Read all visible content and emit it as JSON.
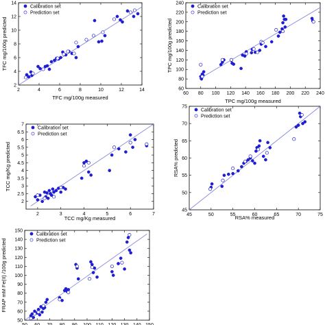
{
  "chart_data": [
    {
      "type": "scatter",
      "xlabel": "TFC mg/100g measured",
      "ylabel": "TFC mg/100g predicted",
      "xlim": [
        2,
        14
      ],
      "ylim": [
        2,
        14
      ],
      "xticks": [
        "2",
        "4",
        "6",
        "8",
        "10",
        "12",
        "14"
      ],
      "yticks": [
        "2",
        "4",
        "6",
        "8",
        "10",
        "12",
        "14"
      ],
      "legend": [
        "Calibration set",
        "Prediction set"
      ],
      "legend_position": "top-left",
      "fit_line": [
        [
          2,
          2
        ],
        [
          14,
          13.4
        ]
      ],
      "series": [
        {
          "name": "Calibration set",
          "marker": "filled",
          "points": [
            [
              2.8,
              3.5
            ],
            [
              3.0,
              3.2
            ],
            [
              3.2,
              3.9
            ],
            [
              3.3,
              3.4
            ],
            [
              3.9,
              4.7
            ],
            [
              4.1,
              4.4
            ],
            [
              4.6,
              4.7
            ],
            [
              4.8,
              4.8
            ],
            [
              5.0,
              4.3
            ],
            [
              5.2,
              5.4
            ],
            [
              5.5,
              5.6
            ],
            [
              5.7,
              5.9
            ],
            [
              5.9,
              5.8
            ],
            [
              6.1,
              6.0
            ],
            [
              6.3,
              6.8
            ],
            [
              6.6,
              6.4
            ],
            [
              6.9,
              6.9
            ],
            [
              7.2,
              6.6
            ],
            [
              7.6,
              6.0
            ],
            [
              7.8,
              7.6
            ],
            [
              9.4,
              11.4
            ],
            [
              9.8,
              8.3
            ],
            [
              10.1,
              8.4
            ],
            [
              10.4,
              9.2
            ],
            [
              11.6,
              12.0
            ],
            [
              11.9,
              11.5
            ],
            [
              12.1,
              11.2
            ],
            [
              12.6,
              12.8
            ],
            [
              13.2,
              12.0
            ],
            [
              13.6,
              12.4
            ]
          ]
        },
        {
          "name": "Prediction set",
          "marker": "open",
          "points": [
            [
              2.7,
              3.1
            ],
            [
              3.4,
              3.7
            ],
            [
              4.4,
              4.3
            ],
            [
              5.8,
              5.9
            ],
            [
              6.4,
              6.5
            ],
            [
              6.8,
              6.9
            ],
            [
              7.4,
              6.6
            ],
            [
              7.6,
              8.2
            ],
            [
              8.6,
              8.6
            ],
            [
              9.3,
              9.2
            ],
            [
              10.2,
              9.7
            ],
            [
              11.3,
              11.6
            ],
            [
              12.9,
              12.6
            ],
            [
              13.3,
              12.9
            ]
          ]
        }
      ]
    },
    {
      "type": "scatter",
      "xlabel": "TPC mg/100g measured",
      "ylabel": "TPC mg/100g predicted",
      "xlim": [
        60,
        240
      ],
      "ylim": [
        60,
        240
      ],
      "xticks": [
        "60",
        "80",
        "100",
        "120",
        "140",
        "160",
        "180",
        "200",
        "220",
        "240"
      ],
      "yticks": [
        "60",
        "80",
        "100",
        "120",
        "140",
        "160",
        "180",
        "200",
        "220",
        "240"
      ],
      "legend": [
        "Calibration set",
        "Prediction set"
      ],
      "legend_position": "top-left",
      "fit_line": [
        [
          78,
          80
        ],
        [
          240,
          230
        ]
      ],
      "series": [
        {
          "name": "Calibration set",
          "marker": "filled",
          "points": [
            [
              80,
              85
            ],
            [
              81,
              80
            ],
            [
              82,
              90
            ],
            [
              83,
              88
            ],
            [
              84,
              95
            ],
            [
              107,
              110
            ],
            [
              109,
              115
            ],
            [
              111,
              120
            ],
            [
              121,
              119
            ],
            [
              122,
              113
            ],
            [
              124,
              111
            ],
            [
              134,
              102
            ],
            [
              136,
              130
            ],
            [
              139,
              128
            ],
            [
              141,
              137
            ],
            [
              148,
              135
            ],
            [
              149,
              142
            ],
            [
              153,
              136
            ],
            [
              159,
              140
            ],
            [
              161,
              153
            ],
            [
              167,
              148
            ],
            [
              175,
              158
            ],
            [
              184,
              170
            ],
            [
              186,
              178
            ],
            [
              189,
              185
            ],
            [
              190,
              198
            ],
            [
              191,
              212
            ],
            [
              192,
              205
            ],
            [
              193,
              189
            ],
            [
              194,
              205
            ],
            [
              229,
              207
            ],
            [
              230,
              202
            ]
          ]
        },
        {
          "name": "Prediction set",
          "marker": "open",
          "points": [
            [
              80,
              110
            ],
            [
              82,
              85
            ],
            [
              109,
              120
            ],
            [
              121,
              120
            ],
            [
              141,
              133
            ],
            [
              151,
              143
            ],
            [
              156,
              136
            ],
            [
              161,
              158
            ],
            [
              163,
              156
            ],
            [
              181,
              183
            ],
            [
              190,
              180
            ],
            [
              231,
              200
            ]
          ]
        }
      ]
    },
    {
      "type": "scatter",
      "xlabel": "TCC mg/Kg measured",
      "ylabel": "TCC mg/Kg predicted",
      "xlim": [
        1.5,
        7
      ],
      "ylim": [
        1.5,
        7
      ],
      "xticks": [
        "2",
        "3",
        "4",
        "5",
        "6",
        "7"
      ],
      "yticks": [
        "2",
        "2.5",
        "3",
        "3.5",
        "4",
        "4.5",
        "5",
        "5.5",
        "6",
        "6.5",
        "7"
      ],
      "legend": [
        "Calibration set",
        "Prediction set"
      ],
      "legend_position": "top-left",
      "fit_line": [
        [
          1.7,
          1.7
        ],
        [
          7,
          7
        ]
      ],
      "series": [
        {
          "name": "Calibration set",
          "marker": "filled",
          "points": [
            [
              1.9,
              2.3
            ],
            [
              2.0,
              2.1
            ],
            [
              2.1,
              2.4
            ],
            [
              2.2,
              2.0
            ],
            [
              2.3,
              2.6
            ],
            [
              2.35,
              2.3
            ],
            [
              2.4,
              2.55
            ],
            [
              2.45,
              2.2
            ],
            [
              2.5,
              2.7
            ],
            [
              2.55,
              2.5
            ],
            [
              2.6,
              2.4
            ],
            [
              2.65,
              2.8
            ],
            [
              2.7,
              2.6
            ],
            [
              2.8,
              2.7
            ],
            [
              2.9,
              2.85
            ],
            [
              3.0,
              2.6
            ],
            [
              3.1,
              2.9
            ],
            [
              3.2,
              2.8
            ],
            [
              3.9,
              3.5
            ],
            [
              4.0,
              4.5
            ],
            [
              4.1,
              4.6
            ],
            [
              4.2,
              3.9
            ],
            [
              4.3,
              3.7
            ],
            [
              5.1,
              4.0
            ],
            [
              5.2,
              5.0
            ],
            [
              5.5,
              5.4
            ],
            [
              5.8,
              5.2
            ],
            [
              6.0,
              6.3
            ],
            [
              6.1,
              5.5
            ],
            [
              6.2,
              6.0
            ],
            [
              6.7,
              5.6
            ]
          ]
        },
        {
          "name": "Prediction set",
          "marker": "open",
          "points": [
            [
              2.0,
              2.4
            ],
            [
              2.3,
              2.2
            ],
            [
              2.7,
              2.3
            ],
            [
              3.0,
              2.9
            ],
            [
              4.0,
              4.3
            ],
            [
              4.2,
              4.5
            ],
            [
              5.3,
              5.5
            ],
            [
              6.0,
              5.8
            ],
            [
              6.7,
              5.7
            ]
          ]
        }
      ]
    },
    {
      "type": "scatter",
      "xlabel": "RSA% measured",
      "ylabel": "RSA% predicted",
      "xlim": [
        45,
        75
      ],
      "ylim": [
        45,
        75
      ],
      "xticks": [
        "45",
        "50",
        "55",
        "60",
        "65",
        "70",
        "75"
      ],
      "yticks": [
        "45",
        "50",
        "55",
        "60",
        "65",
        "70",
        "75"
      ],
      "legend": [
        "Calibration set",
        "Prediction set"
      ],
      "legend_position": "top-left",
      "fit_line": [
        [
          45,
          45
        ],
        [
          75,
          75
        ]
      ],
      "series": [
        {
          "name": "Calibration set",
          "marker": "filled",
          "points": [
            [
              50.0,
              51.5
            ],
            [
              50.2,
              52.5
            ],
            [
              52.5,
              51.8
            ],
            [
              53.0,
              55.0
            ],
            [
              54.0,
              55.3
            ],
            [
              55.0,
              55.5
            ],
            [
              56.2,
              56.3
            ],
            [
              57.0,
              57.5
            ],
            [
              57.5,
              58.5
            ],
            [
              58.0,
              59.0
            ],
            [
              58.5,
              59.5
            ],
            [
              59.0,
              60.0
            ],
            [
              59.5,
              59.2
            ],
            [
              60.0,
              58.5
            ],
            [
              60.3,
              62.0
            ],
            [
              60.5,
              63.0
            ],
            [
              61.0,
              63.5
            ],
            [
              61.2,
              65.0
            ],
            [
              62.0,
              60.5
            ],
            [
              62.5,
              59.5
            ],
            [
              63.0,
              64.5
            ],
            [
              63.5,
              63.0
            ],
            [
              69.5,
              69.0
            ],
            [
              70.0,
              69.5
            ],
            [
              70.3,
              73.0
            ],
            [
              70.5,
              72.0
            ],
            [
              71.0,
              70.0
            ],
            [
              71.5,
              70.5
            ]
          ]
        },
        {
          "name": "Prediction set",
          "marker": "open",
          "points": [
            [
              49.8,
              51.0
            ],
            [
              52.7,
              53.5
            ],
            [
              55.0,
              57.0
            ],
            [
              57.8,
              59.0
            ],
            [
              59.0,
              60.5
            ],
            [
              60.8,
              62.5
            ],
            [
              62.8,
              61.5
            ],
            [
              69.0,
              65.5
            ],
            [
              70.8,
              72.5
            ]
          ]
        }
      ]
    },
    {
      "type": "scatter",
      "xlabel": "",
      "ylabel": "FRAP mM Fe(II) /100g predicted",
      "xlim": [
        50,
        150
      ],
      "ylim": [
        50,
        150
      ],
      "xticks": [
        "50",
        "60",
        "70",
        "80",
        "90",
        "100",
        "110",
        "120",
        "130",
        "140",
        "150"
      ],
      "yticks": [
        "50",
        "60",
        "70",
        "80",
        "90",
        "100",
        "110",
        "120",
        "130",
        "140",
        "150"
      ],
      "legend": [
        "Calibration set",
        "Prediction set"
      ],
      "legend_position": "top-left",
      "fit_line": [
        [
          50,
          50
        ],
        [
          148,
          146
        ]
      ],
      "series": [
        {
          "name": "Calibration set",
          "marker": "filled",
          "points": [
            [
              55,
              55
            ],
            [
              56,
              57
            ],
            [
              57,
              53
            ],
            [
              58,
              60
            ],
            [
              60,
              58
            ],
            [
              61,
              62
            ],
            [
              62,
              56
            ],
            [
              63,
              65
            ],
            [
              64,
              59
            ],
            [
              65,
              63
            ],
            [
              66,
              64
            ],
            [
              67,
              70
            ],
            [
              68,
              73
            ],
            [
              78,
              75
            ],
            [
              80,
              72
            ],
            [
              82,
              83
            ],
            [
              83,
              85
            ],
            [
              84,
              82
            ],
            [
              85,
              84
            ],
            [
              91,
              112
            ],
            [
              92,
              108
            ],
            [
              93,
              96
            ],
            [
              103,
              115
            ],
            [
              104,
              112
            ],
            [
              105,
              103
            ],
            [
              106,
              108
            ],
            [
              108,
              98
            ],
            [
              120,
              104
            ],
            [
              121,
              100
            ],
            [
              125,
              113
            ],
            [
              127,
              119
            ],
            [
              130,
              107
            ],
            [
              132,
              137
            ],
            [
              133,
              142
            ],
            [
              134,
              128
            ],
            [
              135,
              125
            ]
          ]
        },
        {
          "name": "Prediction set",
          "marker": "open",
          "points": [
            [
              55,
              52
            ],
            [
              58,
              57
            ],
            [
              61,
              59
            ],
            [
              65,
              66
            ],
            [
              78,
              73
            ],
            [
              85,
              81
            ],
            [
              92,
              110
            ],
            [
              102,
              96
            ],
            [
              104,
              109
            ],
            [
              120,
              110
            ],
            [
              128,
              114
            ],
            [
              134,
              145
            ]
          ]
        }
      ]
    }
  ]
}
